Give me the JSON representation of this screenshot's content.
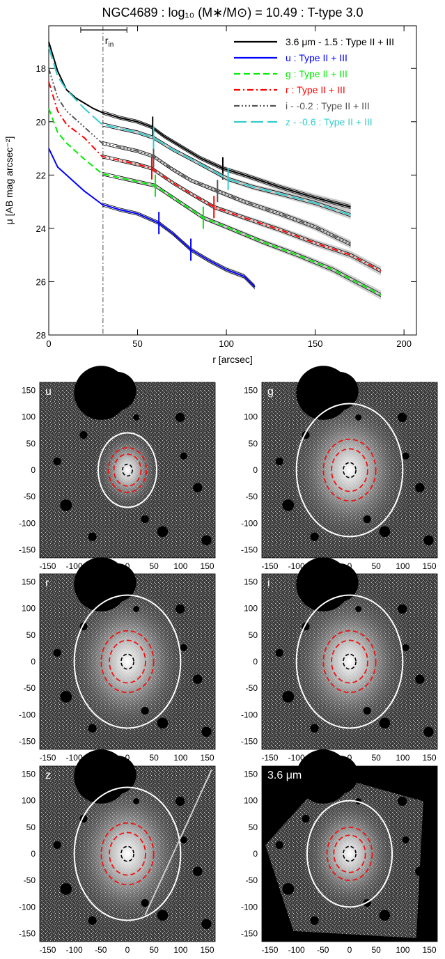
{
  "chart_data": [
    {
      "type": "line",
      "title": "NGC4689 : log₁₀ (M∗/M⊙) = 10.49 : T-type 3.0",
      "xlabel": "r [arcsec]",
      "ylabel": "μ [AB mag arcsec⁻²]",
      "xlim": [
        0,
        207
      ],
      "ylim": [
        28,
        16.4
      ],
      "y_inverted": true,
      "xticks": [
        "0",
        "50",
        "100",
        "150",
        "200"
      ],
      "yticks": [
        "18",
        "20",
        "22",
        "24",
        "26",
        "28"
      ],
      "r_in": {
        "label": "r",
        "sub": "in",
        "value": 30.5,
        "range": [
          18,
          44
        ]
      },
      "legend_position": "top-right",
      "series": [
        {
          "name": "3.6 μm - 1.5 : Type II + III",
          "color": "#000000",
          "dash": "",
          "x": [
            0,
            5,
            10,
            15,
            20,
            25,
            30,
            35,
            40,
            50,
            58,
            65,
            75,
            85,
            98,
            110,
            130,
            150,
            170
          ],
          "y": [
            17.0,
            18.1,
            18.8,
            19.1,
            19.3,
            19.5,
            19.65,
            19.75,
            19.85,
            20.0,
            20.2,
            20.55,
            20.95,
            21.35,
            21.75,
            22.0,
            22.45,
            22.85,
            23.2
          ],
          "breaks": [
            58.5,
            98
          ]
        },
        {
          "name": "u : Type II + III",
          "color": "#0000ff",
          "dash": "",
          "x": [
            0,
            5,
            10,
            20,
            30,
            40,
            50,
            62,
            70,
            80,
            90,
            100,
            110,
            116
          ],
          "y": [
            21.0,
            21.7,
            22.0,
            22.6,
            23.1,
            23.3,
            23.45,
            23.8,
            24.2,
            24.8,
            25.2,
            25.55,
            25.8,
            26.2
          ],
          "breaks": [
            62,
            80
          ]
        },
        {
          "name": "g : Type II + III",
          "color": "#00ee00",
          "dash": "9,5",
          "x": [
            0,
            5,
            10,
            20,
            30,
            40,
            50,
            60,
            70,
            87,
            100,
            120,
            140,
            160,
            187
          ],
          "y": [
            19.5,
            20.4,
            20.8,
            21.4,
            21.95,
            22.1,
            22.25,
            22.4,
            22.85,
            23.6,
            23.95,
            24.5,
            25.0,
            25.55,
            26.5
          ],
          "breaks": [
            60,
            87
          ]
        },
        {
          "name": "r : Type II + III",
          "color": "#ff0000",
          "dash": "9,4,2,4",
          "x": [
            0,
            5,
            10,
            20,
            30,
            40,
            50,
            58,
            70,
            80,
            93,
            110,
            130,
            150,
            170,
            187
          ],
          "y": [
            18.5,
            19.6,
            20.1,
            20.6,
            21.3,
            21.45,
            21.6,
            21.75,
            22.3,
            22.7,
            23.2,
            23.6,
            24.05,
            24.55,
            25.0,
            25.6
          ],
          "breaks": [
            58,
            93
          ]
        },
        {
          "name": "i - -0.2 : Type II + III",
          "color": "#555555",
          "dash": "8,3,2,3,2,3,2,3",
          "x": [
            0,
            5,
            10,
            20,
            30,
            40,
            50,
            59,
            70,
            80,
            95,
            110,
            130,
            150,
            170
          ],
          "y": [
            18.0,
            19.1,
            19.6,
            20.2,
            20.8,
            20.95,
            21.1,
            21.3,
            21.8,
            22.2,
            22.6,
            23.0,
            23.45,
            23.95,
            24.6
          ],
          "breaks": [
            59,
            95
          ]
        },
        {
          "name": "z - -0.6 : Type II + III",
          "color": "#33cccc",
          "dash": "18,6",
          "x": [
            0,
            5,
            10,
            20,
            30,
            40,
            50,
            59,
            70,
            80,
            101,
            115,
            130,
            150,
            170
          ],
          "y": [
            17.2,
            18.3,
            18.8,
            19.5,
            20.1,
            20.25,
            20.4,
            20.6,
            21.05,
            21.4,
            22.15,
            22.45,
            22.7,
            23.05,
            23.5
          ],
          "breaks": [
            59,
            101
          ]
        }
      ]
    },
    {
      "type": "heatmap",
      "panels": [
        {
          "band": "u",
          "ellipse_major": 70,
          "ellipse_minor": 55,
          "red_outer": 42,
          "red_inner": 30,
          "black": 11,
          "xticks": [
            "-150",
            "-100",
            "-50",
            "0",
            "50",
            "100",
            "150"
          ],
          "yticks": [
            "150",
            "100",
            "50",
            "0",
            "-50",
            "-100",
            "-150"
          ]
        },
        {
          "band": "g",
          "ellipse_major": 125,
          "ellipse_minor": 100,
          "red_outer": 58,
          "red_inner": 40,
          "black": 14,
          "xticks": [
            "-150",
            "-100",
            "-50",
            "0",
            "50",
            "100",
            "150"
          ],
          "yticks": [
            "150",
            "100",
            "50",
            "0",
            "-50",
            "-100",
            "-150"
          ]
        },
        {
          "band": "r",
          "ellipse_major": 125,
          "ellipse_minor": 100,
          "red_outer": 58,
          "red_inner": 40,
          "black": 14,
          "xticks": [
            "-150",
            "-100",
            "-50",
            "0",
            "50",
            "100",
            "150"
          ],
          "yticks": [
            "150",
            "100",
            "50",
            "0",
            "-50",
            "-100",
            "-150"
          ]
        },
        {
          "band": "i",
          "ellipse_major": 125,
          "ellipse_minor": 100,
          "red_outer": 58,
          "red_inner": 40,
          "black": 14,
          "xticks": [
            "-150",
            "-100",
            "-50",
            "0",
            "50",
            "100",
            "150"
          ],
          "yticks": [
            "150",
            "100",
            "50",
            "0",
            "-50",
            "-100",
            "-150"
          ]
        },
        {
          "band": "z",
          "ellipse_major": 125,
          "ellipse_minor": 100,
          "red_outer": 58,
          "red_inner": 40,
          "black": 14,
          "xticks": [
            "-150",
            "-100",
            "-50",
            "0",
            "50",
            "100",
            "150"
          ],
          "yticks": [
            "150",
            "100",
            "50",
            "0",
            "-50",
            "-100",
            "-150"
          ]
        },
        {
          "band": "3.6 μm",
          "ellipse_major": 100,
          "ellipse_minor": 80,
          "red_outer": 50,
          "red_inner": 35,
          "black": 14,
          "xticks": [
            "-150",
            "-100",
            "-50",
            "0",
            "50",
            "100",
            "150"
          ],
          "yticks": [
            "150",
            "100",
            "50",
            "0",
            "-50",
            "-100",
            "-150"
          ]
        }
      ]
    }
  ]
}
